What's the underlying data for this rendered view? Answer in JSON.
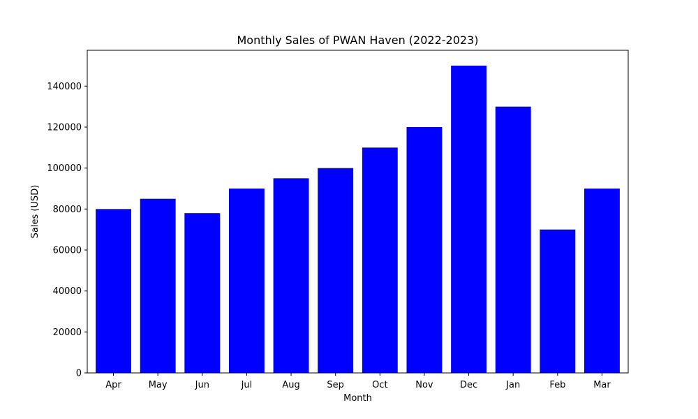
{
  "chart_data": {
    "type": "bar",
    "title": "Monthly Sales of PWAN Haven (2022-2023)",
    "xlabel": "Month",
    "ylabel": "Sales (USD)",
    "categories": [
      "Apr",
      "May",
      "Jun",
      "Jul",
      "Aug",
      "Sep",
      "Oct",
      "Nov",
      "Dec",
      "Jan",
      "Feb",
      "Mar"
    ],
    "values": [
      80000,
      85000,
      78000,
      90000,
      95000,
      100000,
      110000,
      120000,
      150000,
      130000,
      70000,
      90000
    ],
    "ylim": [
      0,
      157500
    ],
    "yticks": [
      0,
      20000,
      40000,
      60000,
      80000,
      100000,
      120000,
      140000
    ],
    "ytick_labels": [
      "0",
      "20000",
      "40000",
      "60000",
      "80000",
      "100000",
      "120000",
      "140000"
    ],
    "bar_color": "#0000ff",
    "grid": false,
    "legend": "none"
  }
}
